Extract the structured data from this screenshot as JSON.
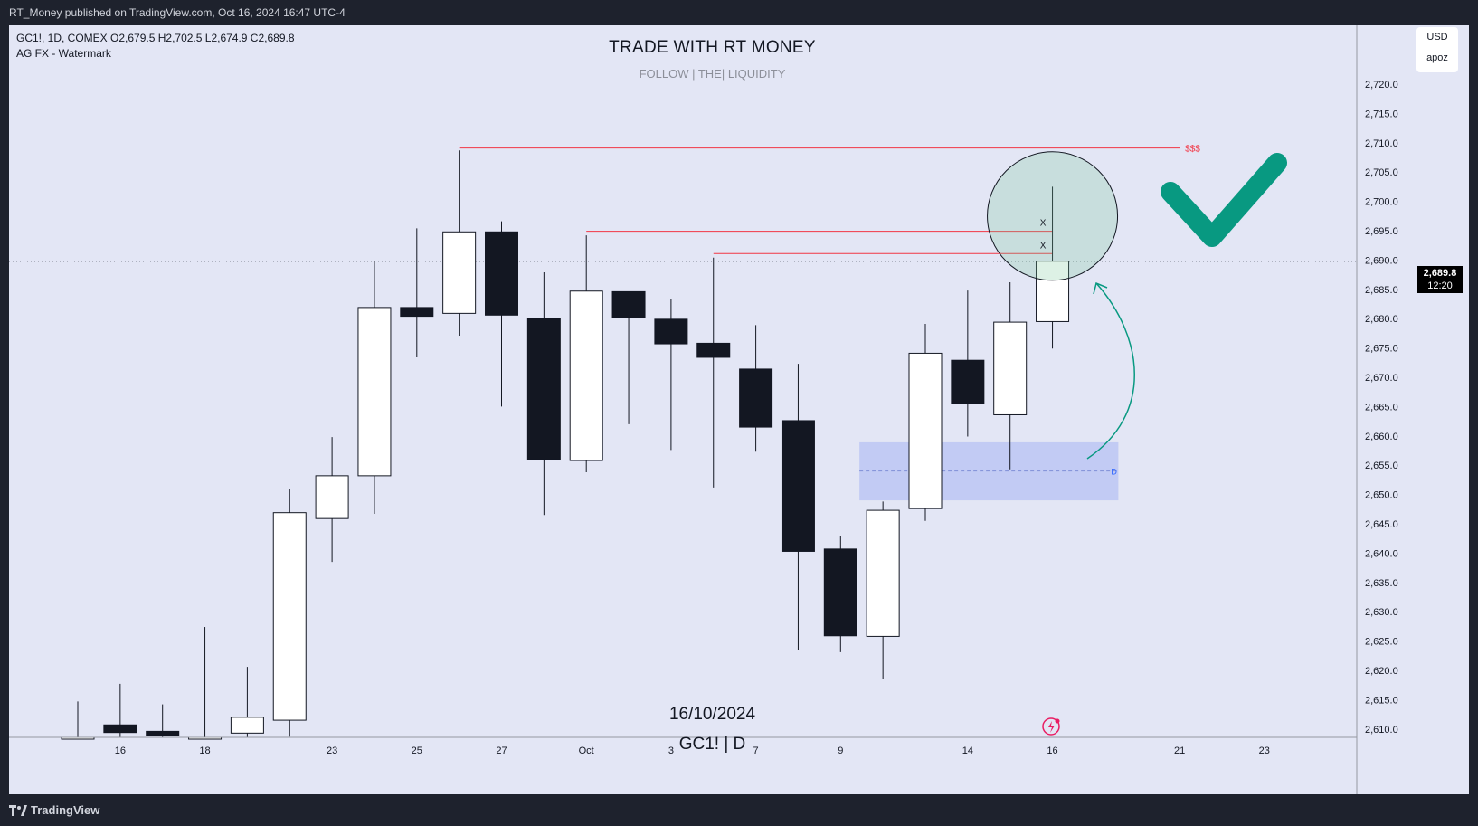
{
  "header": {
    "published_text": "RT_Money published on TradingView.com, Oct 16, 2024 16:47 UTC-4"
  },
  "legend": {
    "line1": "GC1!, 1D, COMEX  O2,679.5  H2,702.5  L2,674.9  C2,689.8",
    "line2": "AG FX - Watermark"
  },
  "watermark": {
    "title": "TRADE WITH RT MONEY",
    "subtitle": "FOLLOW   |   THE|   LIQUIDITY",
    "date": "16/10/2024",
    "symbol": "GC1!  |  D"
  },
  "price_scale": {
    "currency": "USD",
    "unit": "apoz",
    "last_price": "2,689.8",
    "countdown": "12:20"
  },
  "annotations": {
    "liquidity_label": "$$$",
    "sweep_marks": [
      "X",
      "X"
    ],
    "zone_label": "D",
    "check_color": "#089981",
    "arrow_color": "#089981",
    "level_color": "#f23645",
    "zone_color": "#b9c4f4"
  },
  "footer": {
    "brand": "TradingView"
  },
  "chart_data": {
    "type": "candlestick",
    "symbol": "GC1!",
    "timeframe": "1D",
    "ylim": [
      2607,
      2732
    ],
    "y_ticks": [
      2610,
      2615,
      2620,
      2625,
      2630,
      2635,
      2640,
      2645,
      2650,
      2655,
      2660,
      2665,
      2670,
      2675,
      2680,
      2685,
      2690,
      2695,
      2700,
      2705,
      2710,
      2715,
      2720
    ],
    "x_ticks": [
      "16",
      "18",
      "23",
      "25",
      "27",
      "Oct",
      "3",
      "7",
      "9",
      "14",
      "16",
      "21",
      "23"
    ],
    "candles": [
      {
        "o": 2606,
        "h": 2614.7,
        "l": 2606,
        "c": 2606
      },
      {
        "o": 2610.7,
        "h": 2617.7,
        "l": 2606,
        "c": 2609.4
      },
      {
        "o": 2609.6,
        "h": 2614.2,
        "l": 2606,
        "c": 2608.9
      },
      {
        "o": 2606,
        "h": 2627.4,
        "l": 2606,
        "c": 2606
      },
      {
        "o": 2609.3,
        "h": 2620.6,
        "l": 2606,
        "c": 2612
      },
      {
        "o": 2611.5,
        "h": 2651,
        "l": 2608.7,
        "c": 2646.9
      },
      {
        "o": 2645.9,
        "h": 2659.8,
        "l": 2638.5,
        "c": 2653.2
      },
      {
        "o": 2653.2,
        "h": 2689.7,
        "l": 2646.7,
        "c": 2681.9
      },
      {
        "o": 2681.9,
        "h": 2695.4,
        "l": 2673.4,
        "c": 2680.4
      },
      {
        "o": 2680.9,
        "h": 2708.7,
        "l": 2677.1,
        "c": 2694.8
      },
      {
        "o": 2694.8,
        "h": 2696.6,
        "l": 2665,
        "c": 2680.6
      },
      {
        "o": 2680,
        "h": 2687.9,
        "l": 2646.5,
        "c": 2656
      },
      {
        "o": 2655.8,
        "h": 2694.2,
        "l": 2653.8,
        "c": 2684.7
      },
      {
        "o": 2684.6,
        "h": 2684.6,
        "l": 2662,
        "c": 2680.2
      },
      {
        "o": 2679.9,
        "h": 2683.4,
        "l": 2657.6,
        "c": 2675.7
      },
      {
        "o": 2675.8,
        "h": 2690.4,
        "l": 2651.2,
        "c": 2673.4
      },
      {
        "o": 2671.4,
        "h": 2678.9,
        "l": 2657.3,
        "c": 2661.5
      },
      {
        "o": 2662.6,
        "h": 2672.3,
        "l": 2623.5,
        "c": 2640.3
      },
      {
        "o": 2640.7,
        "h": 2642.9,
        "l": 2623.1,
        "c": 2625.9
      },
      {
        "o": 2625.8,
        "h": 2648.8,
        "l": 2618.5,
        "c": 2647.3
      },
      {
        "o": 2647.6,
        "h": 2679.1,
        "l": 2645.5,
        "c": 2674.1
      },
      {
        "o": 2672.9,
        "h": 2684.8,
        "l": 2659.9,
        "c": 2665.6
      },
      {
        "o": 2663.6,
        "h": 2686.2,
        "l": 2654.3,
        "c": 2679.4
      },
      {
        "o": 2679.5,
        "h": 2702.5,
        "l": 2674.9,
        "c": 2689.8
      }
    ],
    "levels": [
      {
        "price": 2709.1,
        "label": "$$$"
      },
      {
        "price": 2694.9,
        "label": ""
      },
      {
        "price": 2691.1,
        "label": ""
      },
      {
        "price": 2684.9,
        "label": ""
      }
    ],
    "zone": {
      "from": 2649,
      "to": 2658.9,
      "mid": 2654,
      "label": "D"
    }
  }
}
